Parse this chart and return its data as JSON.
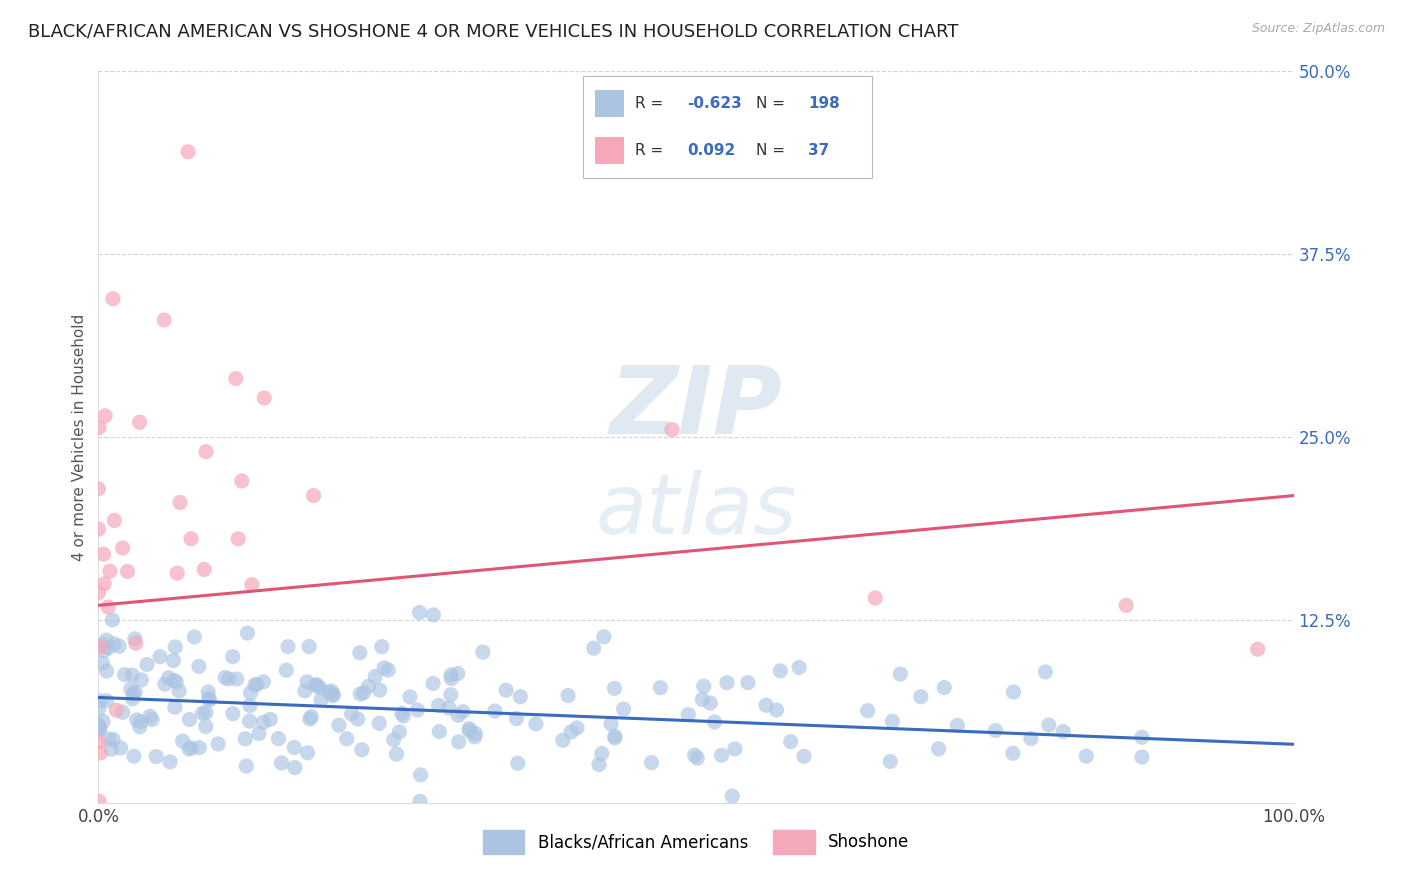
{
  "title": "BLACK/AFRICAN AMERICAN VS SHOSHONE 4 OR MORE VEHICLES IN HOUSEHOLD CORRELATION CHART",
  "source": "Source: ZipAtlas.com",
  "ylabel": "4 or more Vehicles in Household",
  "xlabel": "",
  "blue_R": -0.623,
  "blue_N": 198,
  "pink_R": 0.092,
  "pink_N": 37,
  "blue_label": "Blacks/African Americans",
  "pink_label": "Shoshone",
  "blue_color": "#aac4e2",
  "pink_color": "#f5a8ba",
  "blue_line_color": "#3a6bbf",
  "pink_line_color": "#e05575",
  "bg_color": "#ffffff",
  "grid_color": "#c8c8c8",
  "xmin": 0.0,
  "xmax": 1.0,
  "ymin": 0.0,
  "ymax": 0.5,
  "yticks": [
    0.0,
    0.125,
    0.25,
    0.375,
    0.5
  ],
  "ytick_labels": [
    "",
    "12.5%",
    "25.0%",
    "37.5%",
    "50.0%"
  ],
  "xticks": [
    0.0,
    0.25,
    0.5,
    0.75,
    1.0
  ],
  "xtick_labels": [
    "0.0%",
    "",
    "",
    "",
    "100.0%"
  ],
  "blue_line_intercept": 0.072,
  "blue_line_slope": -0.032,
  "pink_line_intercept": 0.135,
  "pink_line_slope": 0.075,
  "title_fontsize": 13,
  "label_fontsize": 11,
  "tick_fontsize": 12,
  "source_fontsize": 9
}
